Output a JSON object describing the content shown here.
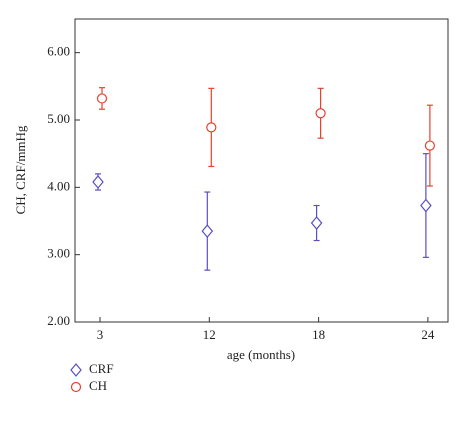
{
  "chart_data": {
    "type": "errorbar",
    "x_label": "age (months)",
    "y_label": "CH, CRF/mmHg",
    "categories": [
      "3",
      "12",
      "18",
      "24"
    ],
    "series": [
      {
        "name": "CRF",
        "color": "#5a4fc0",
        "marker": "diamond",
        "values": [
          4.08,
          3.35,
          3.47,
          3.73
        ],
        "errors": [
          0.12,
          0.58,
          0.26,
          0.77
        ]
      },
      {
        "name": "CH",
        "color": "#e5432e",
        "marker": "circle",
        "values": [
          5.32,
          4.89,
          5.1,
          4.62
        ],
        "errors": [
          0.16,
          0.58,
          0.37,
          0.6
        ]
      }
    ],
    "ylim": [
      2,
      6.5
    ],
    "yticks": [
      {
        "value": 2,
        "label": "2.00"
      },
      {
        "value": 3,
        "label": "3.00"
      },
      {
        "value": 4,
        "label": "4.00"
      },
      {
        "value": 5,
        "label": "5.00"
      },
      {
        "value": 6,
        "label": "6.00"
      }
    ]
  }
}
